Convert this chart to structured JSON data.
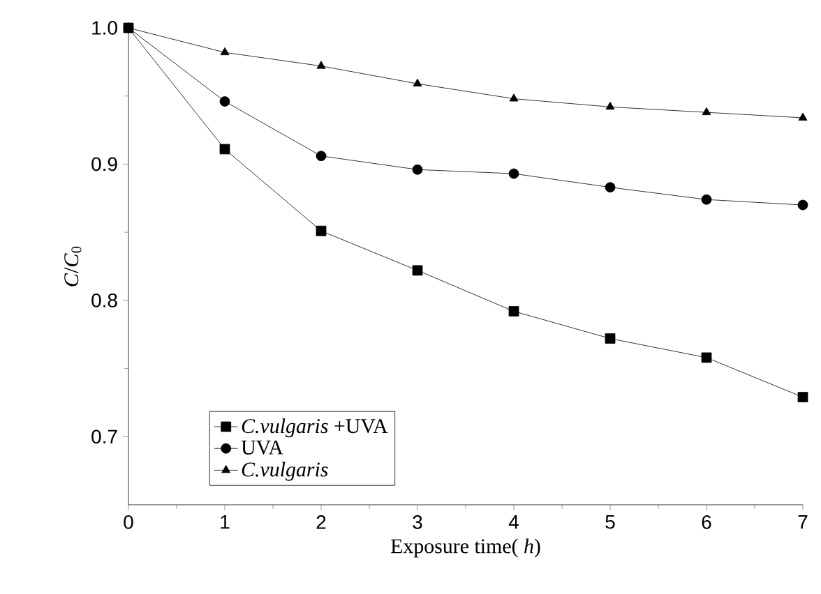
{
  "chart_data": {
    "type": "line",
    "xlabel": "Exposure time( *h*)",
    "ylabel": "*C*/*C*$_{0}$",
    "x": [
      0,
      1,
      2,
      3,
      4,
      5,
      6,
      7
    ],
    "series": [
      {
        "name": "*C.vulgaris* +UVA",
        "color": "#000000",
        "marker": "square",
        "values": [
          1.0,
          0.911,
          0.851,
          0.822,
          0.792,
          0.772,
          0.758,
          0.729
        ]
      },
      {
        "name": "UVA",
        "color": "#000000",
        "marker": "circle",
        "values": [
          1.0,
          0.946,
          0.906,
          0.896,
          0.893,
          0.883,
          0.874,
          0.87
        ]
      },
      {
        "name": "*C.vulgaris*",
        "color": "#000000",
        "marker": "triangle",
        "values": [
          1.0,
          0.982,
          0.972,
          0.959,
          0.948,
          0.942,
          0.938,
          0.934
        ]
      }
    ],
    "xlim": [
      0,
      7
    ],
    "ylim": [
      0.65,
      1.0
    ],
    "xticks": [
      0,
      1,
      2,
      3,
      4,
      5,
      6,
      7
    ],
    "yticks": [
      0.7,
      0.8,
      0.9,
      {
        "value": 1.0,
        "label": "1.0"
      }
    ],
    "grid": false,
    "legend": "bottom left",
    "line_style": "solid"
  }
}
